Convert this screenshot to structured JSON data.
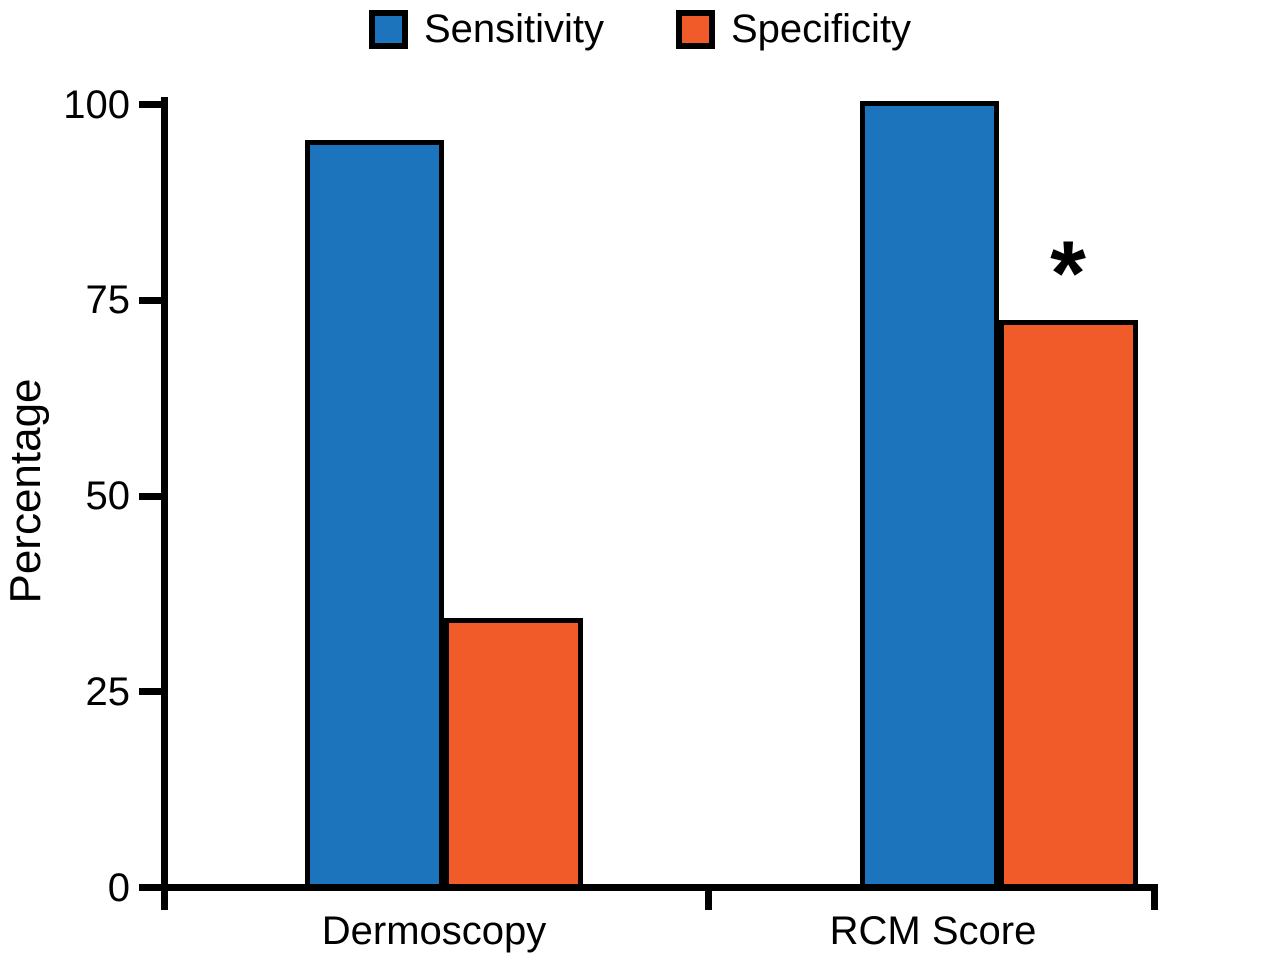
{
  "chart_data": {
    "type": "bar",
    "title": "",
    "categories": [
      "Dermoscopy",
      "RCM Score"
    ],
    "series": [
      {
        "name": "Sensitivity",
        "color": "#1C75BC",
        "values": [
          95,
          100
        ]
      },
      {
        "name": "Specificity",
        "color": "#F15A29",
        "values": [
          34,
          72
        ]
      }
    ],
    "ylabel": "Percentage",
    "xlabel": "",
    "ylim": [
      0,
      100
    ],
    "yticks": [
      0,
      25,
      50,
      75,
      100
    ],
    "grid": false,
    "legend_position": "top-center",
    "bar_border_color": "#000000",
    "axis_color": "#000000",
    "annotations": [
      {
        "text": "*",
        "category": "RCM Score",
        "series": "Specificity"
      }
    ]
  }
}
